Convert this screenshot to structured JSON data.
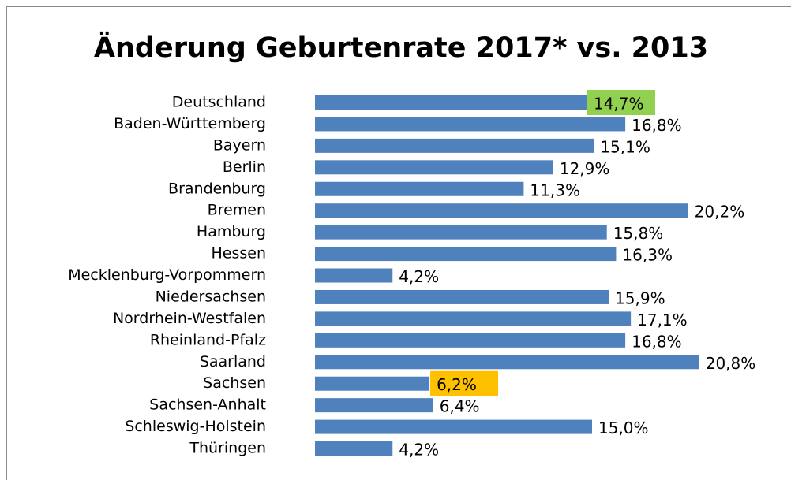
{
  "chart_data": {
    "type": "barh",
    "title": "Änderung Geburtenrate 2017* vs. 2013",
    "categories": [
      "Deutschland",
      "Baden-Württemberg",
      "Bayern",
      "Berlin",
      "Brandenburg",
      "Bremen",
      "Hamburg",
      "Hessen",
      "Mecklenburg-Vorpommern",
      "Niedersachsen",
      "Nordrhein-Westfalen",
      "Rheinland-Pfalz",
      "Saarland",
      "Sachsen",
      "Sachsen-Anhalt",
      "Schleswig-Holstein",
      "Thüringen"
    ],
    "values": [
      14.7,
      16.8,
      15.1,
      12.9,
      11.3,
      20.2,
      15.8,
      16.3,
      4.2,
      15.9,
      17.1,
      16.8,
      20.8,
      6.2,
      6.4,
      15.0,
      4.2
    ],
    "value_labels": [
      "14,7%",
      "16,8%",
      "15,1%",
      "12,9%",
      "11,3%",
      "20,2%",
      "15,8%",
      "16,3%",
      "4,2%",
      "15,9%",
      "17,1%",
      "16,8%",
      "20,8%",
      "6,2%",
      "6,4%",
      "15,0%",
      "4,2%"
    ],
    "label_backgrounds": [
      "#92d050",
      null,
      null,
      null,
      null,
      null,
      null,
      null,
      null,
      null,
      null,
      null,
      null,
      "#ffc000",
      null,
      null,
      null
    ],
    "color": "#4f81bd"
  }
}
